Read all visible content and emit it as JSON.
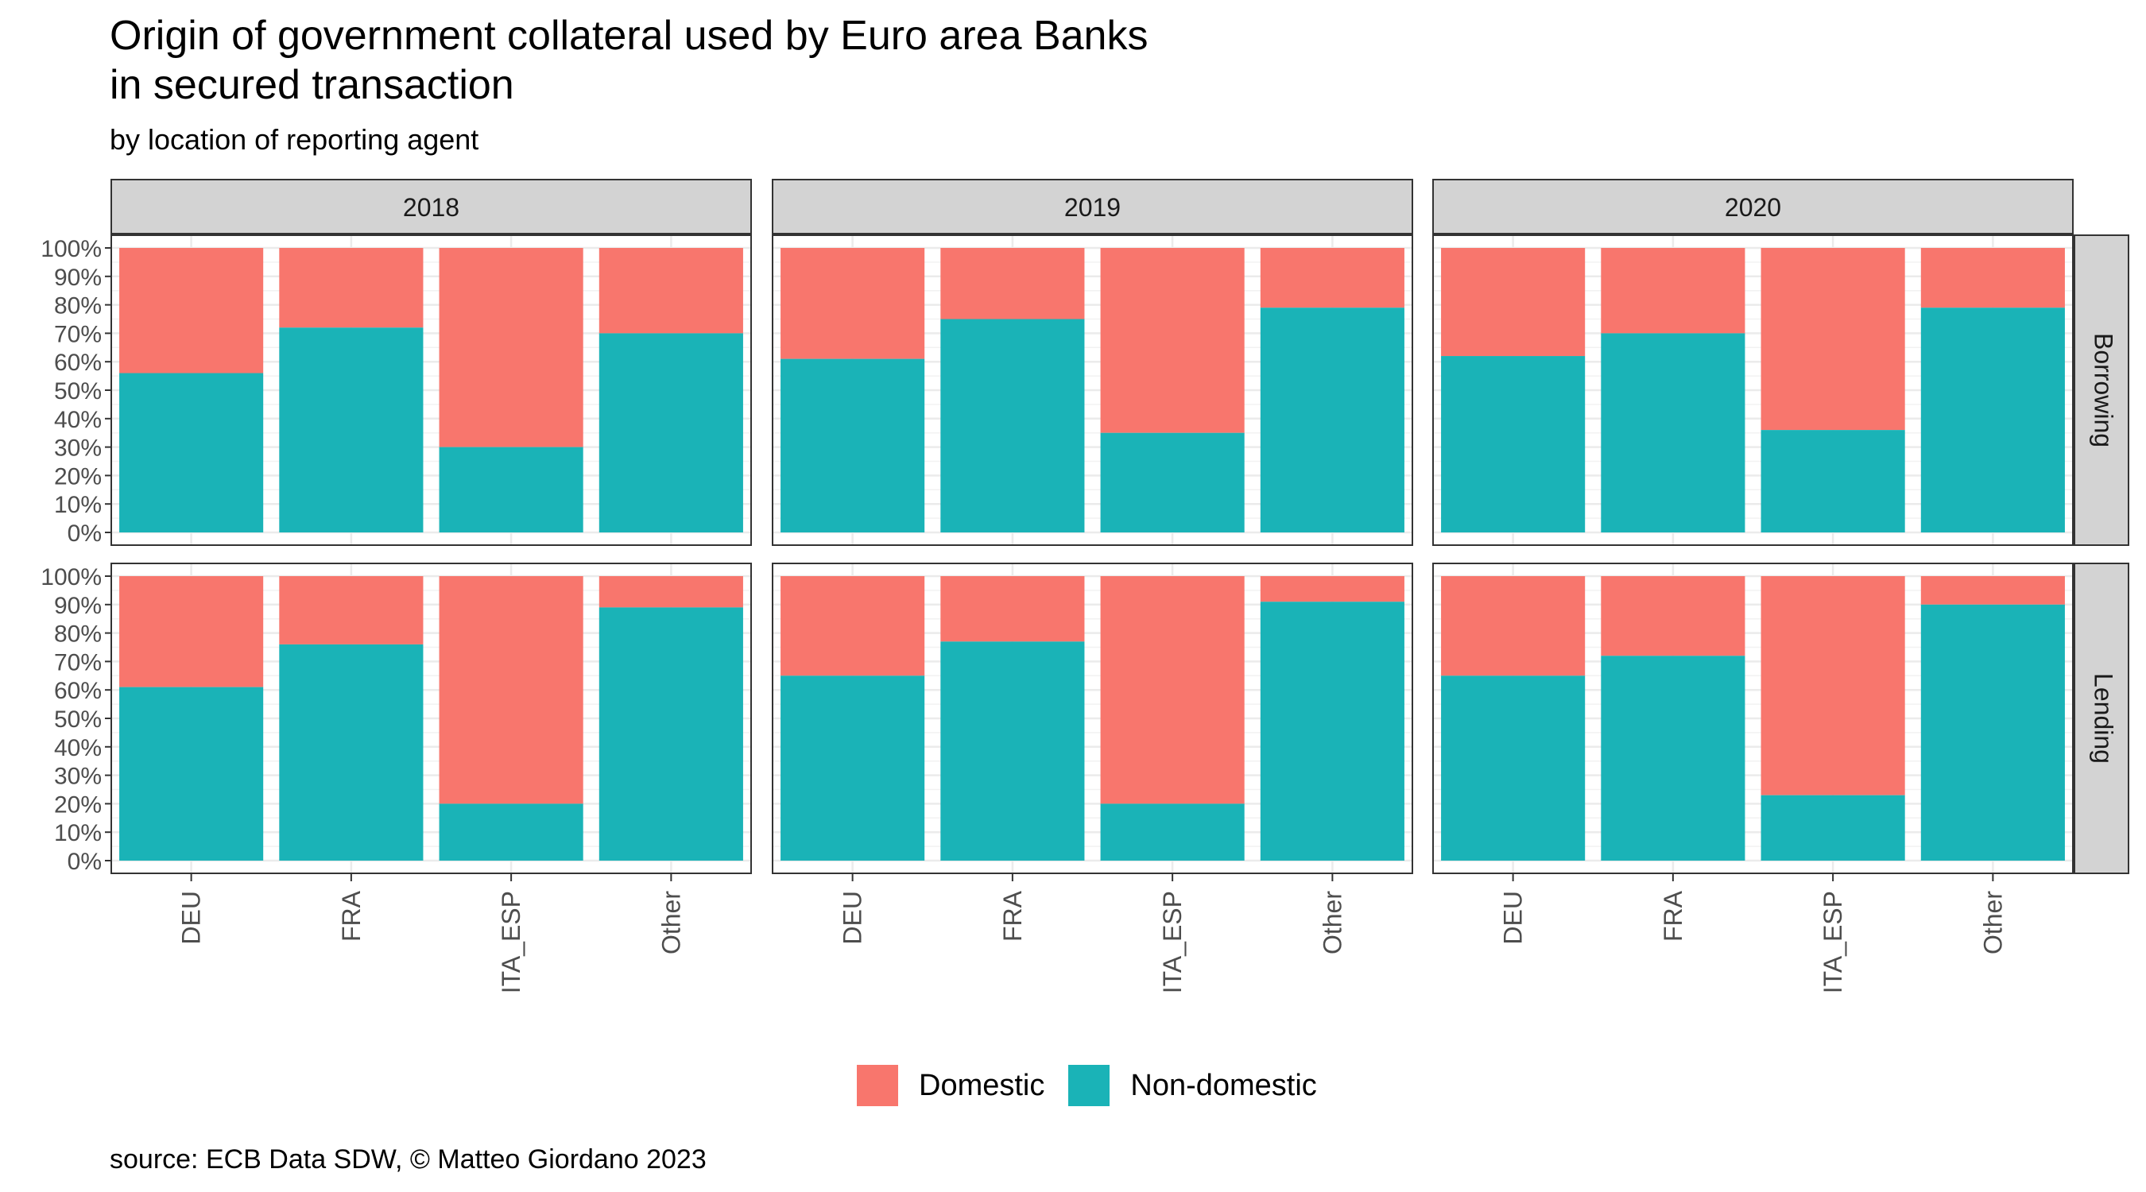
{
  "header": {
    "title_line1": "Origin of government collateral used by Euro area Banks",
    "title_line2": "in secured transaction",
    "subtitle": "by location of reporting agent"
  },
  "footer": {
    "caption": "source: ECB Data SDW, © Matteo Giordano 2023"
  },
  "colors": {
    "Domestic": "#F8766D",
    "Non-domestic": "#1AB3B7",
    "strip": "#D3D3D3",
    "grid": "#EBEBEB"
  },
  "chart_data": {
    "type": "bar",
    "stacked": true,
    "facet_columns": [
      "2018",
      "2019",
      "2020"
    ],
    "facet_rows": [
      "Borrowing",
      "Lending"
    ],
    "categories": [
      "DEU",
      "FRA",
      "ITA_ESP",
      "Other"
    ],
    "y_ticks": [
      "0%",
      "10%",
      "20%",
      "30%",
      "40%",
      "50%",
      "60%",
      "70%",
      "80%",
      "90%",
      "100%"
    ],
    "ylim": [
      0,
      1
    ],
    "legend": {
      "position": "bottom",
      "entries": [
        "Domestic",
        "Non-domestic"
      ]
    },
    "panels": [
      {
        "year": "2018",
        "type": "Borrowing",
        "non_domestic": [
          0.56,
          0.72,
          0.3,
          0.7
        ],
        "domestic": [
          0.44,
          0.28,
          0.7,
          0.3
        ]
      },
      {
        "year": "2019",
        "type": "Borrowing",
        "non_domestic": [
          0.61,
          0.75,
          0.35,
          0.79
        ],
        "domestic": [
          0.39,
          0.25,
          0.65,
          0.21
        ]
      },
      {
        "year": "2020",
        "type": "Borrowing",
        "non_domestic": [
          0.62,
          0.7,
          0.36,
          0.79
        ],
        "domestic": [
          0.38,
          0.3,
          0.64,
          0.21
        ]
      },
      {
        "year": "2018",
        "type": "Lending",
        "non_domestic": [
          0.61,
          0.76,
          0.2,
          0.89
        ],
        "domestic": [
          0.39,
          0.24,
          0.8,
          0.11
        ]
      },
      {
        "year": "2019",
        "type": "Lending",
        "non_domestic": [
          0.65,
          0.77,
          0.2,
          0.91
        ],
        "domestic": [
          0.35,
          0.23,
          0.8,
          0.09
        ]
      },
      {
        "year": "2020",
        "type": "Lending",
        "non_domestic": [
          0.65,
          0.72,
          0.23,
          0.9
        ],
        "domestic": [
          0.35,
          0.28,
          0.77,
          0.1
        ]
      }
    ]
  }
}
